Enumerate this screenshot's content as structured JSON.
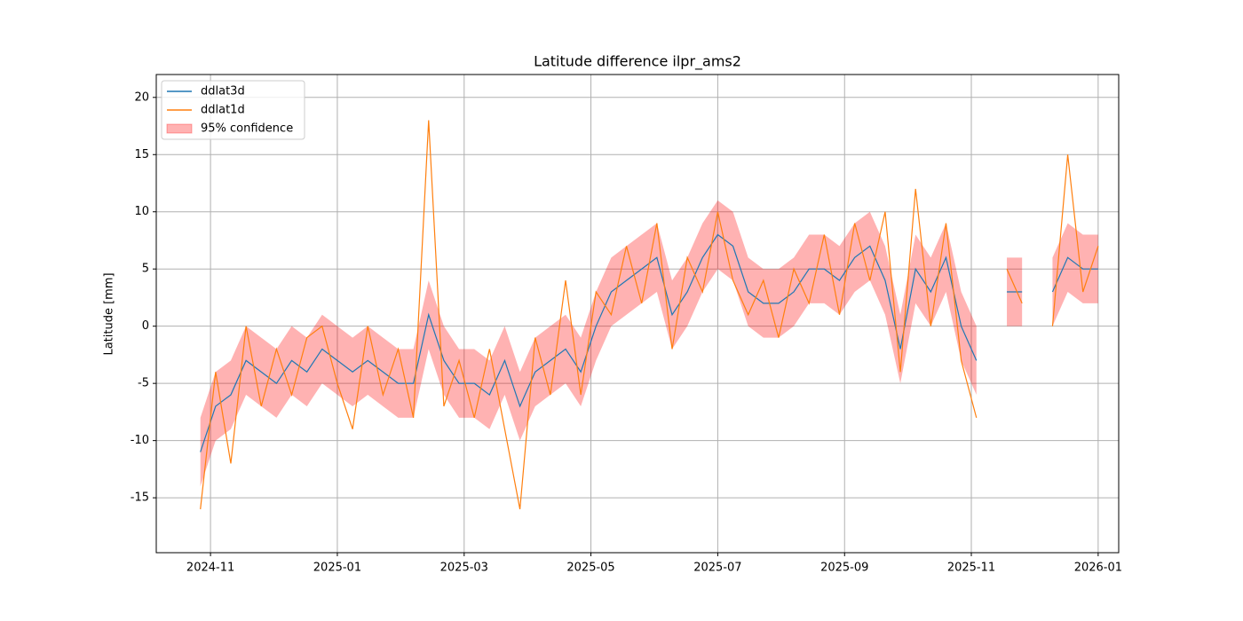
{
  "chart_data": {
    "type": "line",
    "title": "Latitude difference ilpr_ams2",
    "ylabel": "Latitude [mm]",
    "x": [
      2024.82,
      2024.84,
      2024.86,
      2024.88,
      2024.9,
      2024.92,
      2024.94,
      2024.96,
      2024.98,
      2025.0,
      2025.02,
      2025.04,
      2025.06,
      2025.08,
      2025.1,
      2025.12,
      2025.14,
      2025.16,
      2025.18,
      2025.2,
      2025.22,
      2025.24,
      2025.26,
      2025.28,
      2025.3,
      2025.32,
      2025.34,
      2025.36,
      2025.38,
      2025.4,
      2025.42,
      2025.44,
      2025.46,
      2025.48,
      2025.5,
      2025.52,
      2025.54,
      2025.56,
      2025.58,
      2025.6,
      2025.62,
      2025.64,
      2025.66,
      2025.68,
      2025.7,
      2025.72,
      2025.74,
      2025.76,
      2025.78,
      2025.8,
      2025.82,
      2025.84,
      2025.86,
      2025.88,
      2025.9,
      2025.92,
      2025.94,
      2025.96,
      2025.98,
      2026.0
    ],
    "series": [
      {
        "name": "ddlat3d",
        "color": "#1f77b4",
        "values": [
          -11,
          -7,
          -6,
          -3,
          -4,
          -5,
          -3,
          -4,
          -2,
          -3,
          -4,
          -3,
          -4,
          -5,
          -5,
          1,
          -3,
          -5,
          -5,
          -6,
          -3,
          -7,
          -4,
          -3,
          -2,
          -4,
          0,
          3,
          4,
          5,
          6,
          1,
          3,
          6,
          8,
          7,
          3,
          2,
          2,
          3,
          5,
          5,
          4,
          6,
          7,
          4,
          -2,
          5,
          3,
          6,
          0,
          -3,
          null,
          3,
          3,
          null,
          3,
          6,
          5,
          5
        ]
      },
      {
        "name": "ddlat1d",
        "color": "#ff7f0e",
        "values": [
          -16,
          -4,
          -12,
          0,
          -7,
          -2,
          -6,
          -1,
          0,
          -5,
          -9,
          0,
          -6,
          -2,
          -8,
          18,
          -7,
          -3,
          -8,
          -2,
          -9,
          -16,
          -1,
          -6,
          4,
          -6,
          3,
          1,
          7,
          2,
          9,
          -2,
          6,
          3,
          10,
          4,
          1,
          4,
          -1,
          5,
          2,
          8,
          1,
          9,
          4,
          10,
          -4,
          12,
          0,
          9,
          -3,
          -8,
          null,
          5,
          2,
          null,
          0,
          15,
          3,
          7
        ]
      }
    ],
    "band": {
      "name": "95% confidence",
      "color": "#ff0000",
      "lower": [
        -14,
        -10,
        -9,
        -6,
        -7,
        -8,
        -6,
        -7,
        -5,
        -6,
        -7,
        -6,
        -7,
        -8,
        -8,
        -2,
        -6,
        -8,
        -8,
        -9,
        -6,
        -10,
        -7,
        -6,
        -5,
        -7,
        -3,
        0,
        1,
        2,
        3,
        -2,
        0,
        3,
        5,
        4,
        0,
        -1,
        -1,
        0,
        2,
        2,
        1,
        3,
        4,
        1,
        -5,
        2,
        0,
        3,
        -3,
        -6,
        null,
        0,
        0,
        null,
        0,
        3,
        2,
        2
      ],
      "upper": [
        -8,
        -4,
        -3,
        0,
        -1,
        -2,
        0,
        -1,
        1,
        0,
        -1,
        0,
        -1,
        -2,
        -2,
        4,
        0,
        -2,
        -2,
        -3,
        0,
        -4,
        -1,
        0,
        1,
        -1,
        3,
        6,
        7,
        8,
        9,
        4,
        6,
        9,
        11,
        10,
        6,
        5,
        5,
        6,
        8,
        8,
        7,
        9,
        10,
        7,
        1,
        8,
        6,
        9,
        3,
        0,
        null,
        6,
        6,
        null,
        6,
        9,
        8,
        8
      ]
    },
    "xlim": [
      2024.762,
      2026.027
    ],
    "xticks": [
      {
        "value": 2024.8333,
        "label": "2024-11"
      },
      {
        "value": 2025.0,
        "label": "2025-01"
      },
      {
        "value": 2025.1667,
        "label": "2025-03"
      },
      {
        "value": 2025.3333,
        "label": "2025-05"
      },
      {
        "value": 2025.5,
        "label": "2025-07"
      },
      {
        "value": 2025.6667,
        "label": "2025-09"
      },
      {
        "value": 2025.8333,
        "label": "2025-11"
      },
      {
        "value": 2026.0,
        "label": "2026-01"
      }
    ],
    "ylim": [
      -19.8,
      22
    ],
    "yticks": [
      -15,
      -10,
      -5,
      0,
      5,
      10,
      15,
      20
    ],
    "grid": true,
    "legend": "upper left"
  }
}
